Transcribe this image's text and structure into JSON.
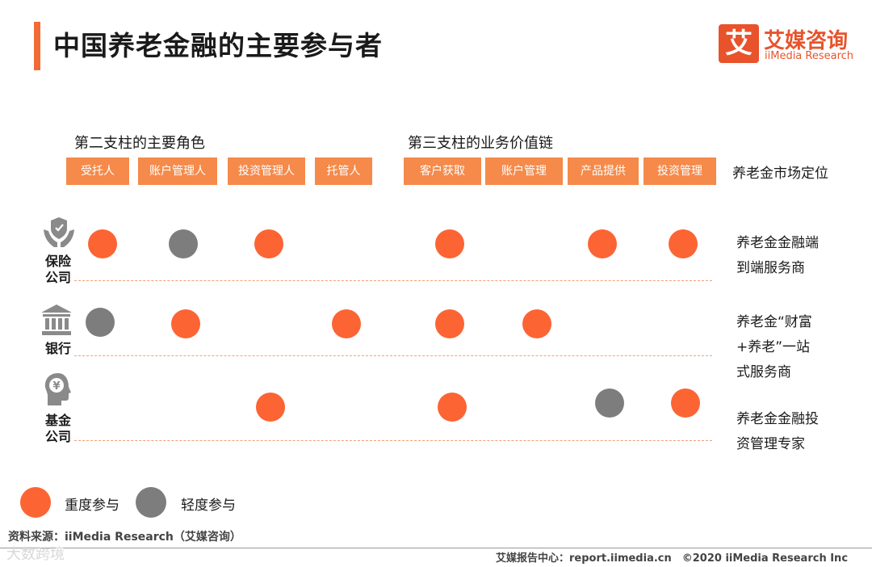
{
  "title": "中国养老金融的主要参与者",
  "logo": {
    "mark": "艾",
    "cn": "艾媒咨询",
    "en": "iiMedia Research"
  },
  "groups": [
    {
      "title": "第二支柱的主要角色"
    },
    {
      "title": "第三支柱的业务价值链"
    }
  ],
  "columns": [
    "受托人",
    "账户管理人",
    "投资管理人",
    "托管人",
    "客户获取",
    "账户管理",
    "产品提供",
    "投资管理"
  ],
  "position_header": "养老金市场定位",
  "rows": [
    {
      "label": "保险\n公司",
      "icon": "shield-hands-icon",
      "cells": [
        "heavy",
        "light",
        "heavy",
        "",
        "heavy",
        "",
        "heavy",
        "heavy"
      ],
      "position": "养老金金融端\n到端服务商"
    },
    {
      "label": "银行",
      "icon": "bank-building-icon",
      "cells": [
        "light",
        "heavy",
        "",
        "heavy",
        "heavy",
        "heavy",
        "",
        ""
      ],
      "position": "养老金“财富\n+养老”一站\n式服务商"
    },
    {
      "label": "基金\n公司",
      "icon": "head-yuan-icon",
      "cells": [
        "",
        "",
        "heavy",
        "",
        "heavy",
        "",
        "light",
        "heavy"
      ],
      "position": "养老金金融投\n资管理专家"
    }
  ],
  "legend": {
    "heavy": "重度参与",
    "light": "轻度参与"
  },
  "colors": {
    "heavy": "#fc6434",
    "light": "#7d7d7d",
    "header": "#f58a4a",
    "accent": "#f26b36"
  },
  "source": "资料来源：iiMedia Research（艾媒咨询）",
  "footer": "艾媒报告中心：report.iimedia.cn　©2020  iiMedia Research  Inc",
  "watermark": "大数跨境"
}
